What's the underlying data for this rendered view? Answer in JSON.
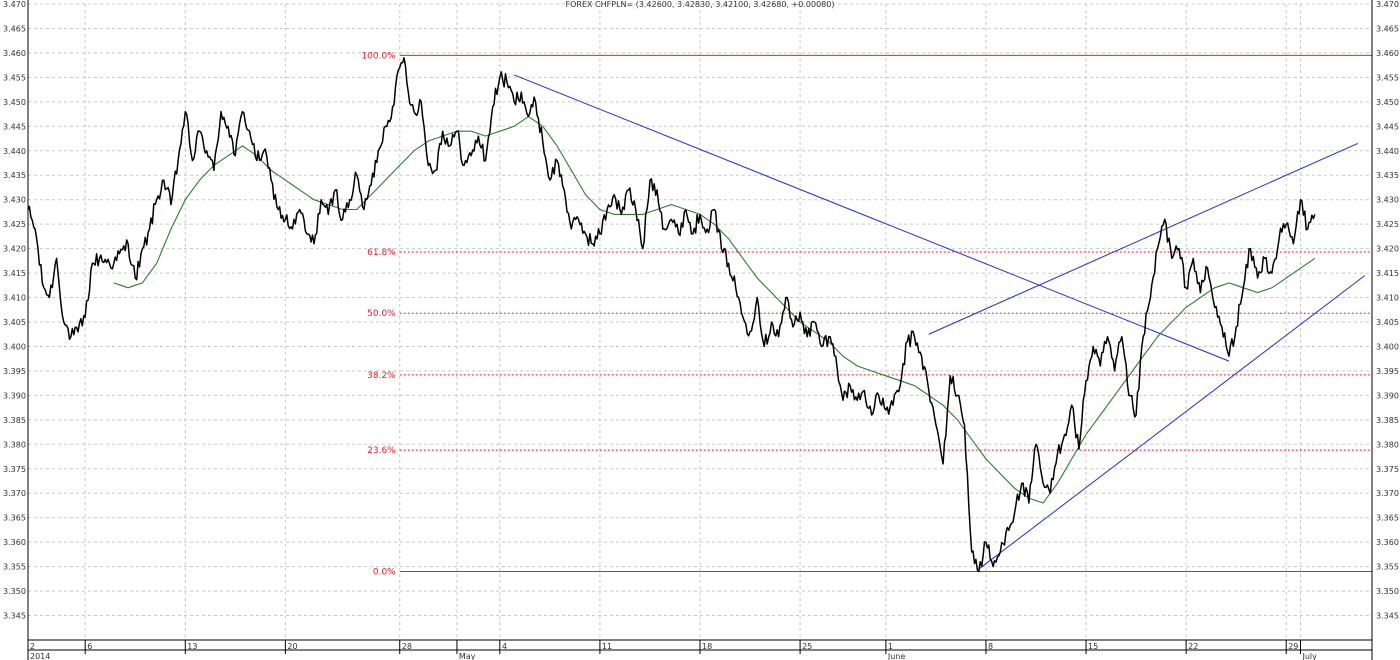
{
  "chart_data": {
    "type": "line",
    "title": "FOREX CHFPLN= (3.42600, 3.42830, 3.42100, 3.42680, +0.00080)",
    "ylim": [
      3.34,
      3.47
    ],
    "y_ticks": [
      "3.345",
      "3.350",
      "3.355",
      "3.360",
      "3.365",
      "3.370",
      "3.375",
      "3.380",
      "3.385",
      "3.390",
      "3.395",
      "3.400",
      "3.405",
      "3.410",
      "3.415",
      "3.420",
      "3.425",
      "3.430",
      "3.435",
      "3.440",
      "3.445",
      "3.450",
      "3.455",
      "3.460",
      "3.465",
      "3.470"
    ],
    "grid": true,
    "colors": {
      "price": "#000000",
      "moving_average": "#2e7d2e",
      "trendline": "#1f2dd6",
      "fib_level": "#e8202a",
      "grid": "#c8c8c8"
    },
    "x_ticks": [
      {
        "day": 0,
        "label": "2",
        "sub": "2014"
      },
      {
        "day": 4,
        "label": "6",
        "sub": ""
      },
      {
        "day": 11,
        "label": "13",
        "sub": ""
      },
      {
        "day": 18,
        "label": "20",
        "sub": ""
      },
      {
        "day": 26,
        "label": "28",
        "sub": ""
      },
      {
        "day": 30,
        "label": "",
        "sub": "May"
      },
      {
        "day": 33,
        "label": "4",
        "sub": ""
      },
      {
        "day": 40,
        "label": "11",
        "sub": ""
      },
      {
        "day": 47,
        "label": "18",
        "sub": ""
      },
      {
        "day": 54,
        "label": "25",
        "sub": ""
      },
      {
        "day": 60,
        "label": "1",
        "sub": "June"
      },
      {
        "day": 67,
        "label": "8",
        "sub": ""
      },
      {
        "day": 74,
        "label": "15",
        "sub": ""
      },
      {
        "day": 81,
        "label": "22",
        "sub": ""
      },
      {
        "day": 88,
        "label": "29",
        "sub": ""
      },
      {
        "day": 89,
        "label": "",
        "sub": "July"
      }
    ],
    "x_range": [
      0,
      94
    ],
    "price_anchors": [
      [
        0.0,
        3.428
      ],
      [
        0.5,
        3.424
      ],
      [
        1.0,
        3.413
      ],
      [
        1.5,
        3.41
      ],
      [
        2.0,
        3.418
      ],
      [
        2.5,
        3.405
      ],
      [
        3.0,
        3.402
      ],
      [
        3.5,
        3.403
      ],
      [
        4.0,
        3.406
      ],
      [
        4.5,
        3.417
      ],
      [
        5.0,
        3.418
      ],
      [
        6.0,
        3.417
      ],
      [
        7.0,
        3.421
      ],
      [
        7.5,
        3.414
      ],
      [
        8.5,
        3.424
      ],
      [
        9.0,
        3.43
      ],
      [
        9.5,
        3.434
      ],
      [
        10.0,
        3.429
      ],
      [
        10.5,
        3.438
      ],
      [
        11.0,
        3.448
      ],
      [
        11.5,
        3.438
      ],
      [
        12.0,
        3.444
      ],
      [
        12.5,
        3.44
      ],
      [
        13.0,
        3.436
      ],
      [
        13.5,
        3.448
      ],
      [
        14.0,
        3.445
      ],
      [
        14.5,
        3.439
      ],
      [
        15.0,
        3.448
      ],
      [
        15.5,
        3.444
      ],
      [
        16.0,
        3.438
      ],
      [
        16.5,
        3.44
      ],
      [
        17.0,
        3.434
      ],
      [
        17.5,
        3.428
      ],
      [
        18.0,
        3.426
      ],
      [
        18.5,
        3.424
      ],
      [
        19.0,
        3.428
      ],
      [
        19.5,
        3.423
      ],
      [
        20.0,
        3.421
      ],
      [
        20.5,
        3.43
      ],
      [
        21.0,
        3.427
      ],
      [
        21.5,
        3.432
      ],
      [
        22.0,
        3.426
      ],
      [
        22.5,
        3.43
      ],
      [
        23.0,
        3.435
      ],
      [
        23.5,
        3.428
      ],
      [
        24.0,
        3.433
      ],
      [
        24.5,
        3.44
      ],
      [
        25.0,
        3.445
      ],
      [
        25.5,
        3.449
      ],
      [
        26.0,
        3.457
      ],
      [
        26.3,
        3.459
      ],
      [
        26.6,
        3.452
      ],
      [
        27.0,
        3.448
      ],
      [
        27.5,
        3.45
      ],
      [
        28.0,
        3.437
      ],
      [
        28.5,
        3.436
      ],
      [
        29.0,
        3.444
      ],
      [
        29.5,
        3.441
      ],
      [
        30.0,
        3.444
      ],
      [
        30.5,
        3.437
      ],
      [
        31.0,
        3.439
      ],
      [
        31.5,
        3.443
      ],
      [
        32.0,
        3.438
      ],
      [
        32.5,
        3.449
      ],
      [
        33.0,
        3.455
      ],
      [
        33.5,
        3.454
      ],
      [
        34.0,
        3.45
      ],
      [
        34.5,
        3.452
      ],
      [
        35.0,
        3.447
      ],
      [
        35.5,
        3.45
      ],
      [
        36.0,
        3.442
      ],
      [
        36.5,
        3.434
      ],
      [
        37.0,
        3.438
      ],
      [
        37.5,
        3.432
      ],
      [
        38.0,
        3.424
      ],
      [
        38.5,
        3.426
      ],
      [
        39.0,
        3.423
      ],
      [
        39.5,
        3.421
      ],
      [
        40.0,
        3.423
      ],
      [
        40.5,
        3.428
      ],
      [
        41.0,
        3.431
      ],
      [
        41.5,
        3.427
      ],
      [
        42.0,
        3.432
      ],
      [
        42.5,
        3.428
      ],
      [
        43.0,
        3.42
      ],
      [
        43.5,
        3.434
      ],
      [
        44.0,
        3.432
      ],
      [
        44.5,
        3.424
      ],
      [
        45.0,
        3.426
      ],
      [
        45.5,
        3.423
      ],
      [
        46.0,
        3.428
      ],
      [
        46.5,
        3.423
      ],
      [
        47.0,
        3.427
      ],
      [
        47.5,
        3.424
      ],
      [
        48.0,
        3.428
      ],
      [
        48.5,
        3.42
      ],
      [
        49.0,
        3.417
      ],
      [
        49.5,
        3.412
      ],
      [
        50.0,
        3.406
      ],
      [
        50.5,
        3.403
      ],
      [
        51.0,
        3.41
      ],
      [
        51.5,
        3.4
      ],
      [
        52.0,
        3.405
      ],
      [
        52.5,
        3.402
      ],
      [
        53.0,
        3.41
      ],
      [
        53.5,
        3.404
      ],
      [
        54.0,
        3.407
      ],
      [
        54.5,
        3.402
      ],
      [
        55.0,
        3.405
      ],
      [
        55.5,
        3.4
      ],
      [
        56.0,
        3.402
      ],
      [
        56.5,
        3.398
      ],
      [
        57.0,
        3.389
      ],
      [
        57.5,
        3.392
      ],
      [
        58.0,
        3.389
      ],
      [
        58.5,
        3.391
      ],
      [
        59.0,
        3.386
      ],
      [
        59.5,
        3.39
      ],
      [
        60.0,
        3.387
      ],
      [
        60.5,
        3.388
      ],
      [
        61.0,
        3.392
      ],
      [
        61.5,
        3.401
      ],
      [
        62.0,
        3.402
      ],
      [
        62.5,
        3.398
      ],
      [
        63.0,
        3.391
      ],
      [
        63.5,
        3.384
      ],
      [
        64.0,
        3.376
      ],
      [
        64.5,
        3.394
      ],
      [
        65.0,
        3.39
      ],
      [
        65.5,
        3.384
      ],
      [
        66.0,
        3.358
      ],
      [
        66.5,
        3.354
      ],
      [
        67.0,
        3.36
      ],
      [
        67.5,
        3.355
      ],
      [
        68.0,
        3.358
      ],
      [
        68.5,
        3.363
      ],
      [
        69.0,
        3.366
      ],
      [
        69.5,
        3.372
      ],
      [
        70.0,
        3.368
      ],
      [
        70.5,
        3.38
      ],
      [
        71.0,
        3.372
      ],
      [
        71.5,
        3.37
      ],
      [
        72.0,
        3.378
      ],
      [
        72.5,
        3.382
      ],
      [
        73.0,
        3.388
      ],
      [
        73.5,
        3.379
      ],
      [
        74.0,
        3.393
      ],
      [
        74.5,
        3.4
      ],
      [
        75.0,
        3.396
      ],
      [
        75.5,
        3.402
      ],
      [
        76.0,
        3.395
      ],
      [
        76.5,
        3.402
      ],
      [
        77.0,
        3.39
      ],
      [
        77.5,
        3.386
      ],
      [
        78.0,
        3.402
      ],
      [
        78.5,
        3.41
      ],
      [
        79.0,
        3.42
      ],
      [
        79.5,
        3.426
      ],
      [
        80.0,
        3.418
      ],
      [
        80.5,
        3.42
      ],
      [
        81.0,
        3.412
      ],
      [
        81.5,
        3.418
      ],
      [
        82.0,
        3.411
      ],
      [
        82.5,
        3.416
      ],
      [
        83.0,
        3.408
      ],
      [
        83.5,
        3.404
      ],
      [
        84.0,
        3.398
      ],
      [
        84.5,
        3.404
      ],
      [
        85.0,
        3.412
      ],
      [
        85.5,
        3.42
      ],
      [
        86.0,
        3.414
      ],
      [
        86.5,
        3.418
      ],
      [
        87.0,
        3.415
      ],
      [
        87.5,
        3.422
      ],
      [
        88.0,
        3.425
      ],
      [
        88.5,
        3.421
      ],
      [
        89.0,
        3.43
      ],
      [
        89.5,
        3.424
      ],
      [
        90.0,
        3.427
      ]
    ],
    "moving_average_anchors": [
      [
        6.0,
        3.413
      ],
      [
        7.0,
        3.412
      ],
      [
        8.0,
        3.413
      ],
      [
        9.0,
        3.417
      ],
      [
        10.0,
        3.424
      ],
      [
        11.0,
        3.43
      ],
      [
        12.0,
        3.434
      ],
      [
        13.0,
        3.437
      ],
      [
        14.0,
        3.439
      ],
      [
        15.0,
        3.441
      ],
      [
        16.0,
        3.439
      ],
      [
        17.0,
        3.436
      ],
      [
        18.0,
        3.434
      ],
      [
        19.0,
        3.432
      ],
      [
        20.0,
        3.43
      ],
      [
        21.0,
        3.429
      ],
      [
        22.0,
        3.428
      ],
      [
        23.0,
        3.428
      ],
      [
        24.0,
        3.431
      ],
      [
        25.0,
        3.434
      ],
      [
        26.0,
        3.437
      ],
      [
        27.0,
        3.44
      ],
      [
        28.0,
        3.442
      ],
      [
        29.0,
        3.443
      ],
      [
        30.0,
        3.444
      ],
      [
        31.0,
        3.444
      ],
      [
        32.0,
        3.443
      ],
      [
        33.0,
        3.444
      ],
      [
        34.0,
        3.445
      ],
      [
        35.0,
        3.447
      ],
      [
        36.0,
        3.445
      ],
      [
        37.0,
        3.441
      ],
      [
        38.0,
        3.436
      ],
      [
        39.0,
        3.431
      ],
      [
        40.0,
        3.428
      ],
      [
        41.0,
        3.427
      ],
      [
        42.0,
        3.427
      ],
      [
        43.0,
        3.427
      ],
      [
        44.0,
        3.428
      ],
      [
        45.0,
        3.429
      ],
      [
        46.0,
        3.428
      ],
      [
        47.0,
        3.427
      ],
      [
        48.0,
        3.425
      ],
      [
        49.0,
        3.422
      ],
      [
        50.0,
        3.418
      ],
      [
        51.0,
        3.414
      ],
      [
        52.0,
        3.411
      ],
      [
        53.0,
        3.408
      ],
      [
        54.0,
        3.405
      ],
      [
        55.0,
        3.403
      ],
      [
        56.0,
        3.401
      ],
      [
        57.0,
        3.398
      ],
      [
        58.0,
        3.396
      ],
      [
        59.0,
        3.395
      ],
      [
        60.0,
        3.394
      ],
      [
        61.0,
        3.393
      ],
      [
        62.0,
        3.392
      ],
      [
        63.0,
        3.39
      ],
      [
        64.0,
        3.388
      ],
      [
        65.0,
        3.385
      ],
      [
        66.0,
        3.381
      ],
      [
        67.0,
        3.377
      ],
      [
        68.0,
        3.374
      ],
      [
        69.0,
        3.371
      ],
      [
        70.0,
        3.369
      ],
      [
        71.0,
        3.368
      ],
      [
        72.0,
        3.372
      ],
      [
        73.0,
        3.377
      ],
      [
        74.0,
        3.382
      ],
      [
        75.0,
        3.386
      ],
      [
        76.0,
        3.39
      ],
      [
        77.0,
        3.394
      ],
      [
        78.0,
        3.398
      ],
      [
        79.0,
        3.402
      ],
      [
        80.0,
        3.405
      ],
      [
        81.0,
        3.408
      ],
      [
        82.0,
        3.41
      ],
      [
        83.0,
        3.412
      ],
      [
        84.0,
        3.413
      ],
      [
        85.0,
        3.412
      ],
      [
        86.0,
        3.411
      ],
      [
        87.0,
        3.412
      ],
      [
        88.0,
        3.414
      ],
      [
        89.0,
        3.416
      ],
      [
        90.0,
        3.418
      ]
    ],
    "trendlines": [
      {
        "from": [
          34.0,
          3.4555
        ],
        "to": [
          84.0,
          3.397
        ]
      },
      {
        "from": [
          63.0,
          3.4025
        ],
        "to": [
          93.0,
          3.4415
        ]
      },
      {
        "from": [
          66.5,
          3.3545
        ],
        "to": [
          93.5,
          3.4145
        ]
      }
    ],
    "fibonacci": {
      "x_start": 26.0,
      "levels": [
        {
          "label": "100.0%",
          "value": 3.4595,
          "style": "solid"
        },
        {
          "label": "61.8%",
          "value": 3.4193,
          "style": "dashed"
        },
        {
          "label": "50.0%",
          "value": 3.4068,
          "style": "dashed"
        },
        {
          "label": "38.2%",
          "value": 3.3942,
          "style": "dashed"
        },
        {
          "label": "23.6%",
          "value": 3.3788,
          "style": "dashed"
        },
        {
          "label": "0.0%",
          "value": 3.354,
          "style": "solid"
        }
      ]
    }
  }
}
